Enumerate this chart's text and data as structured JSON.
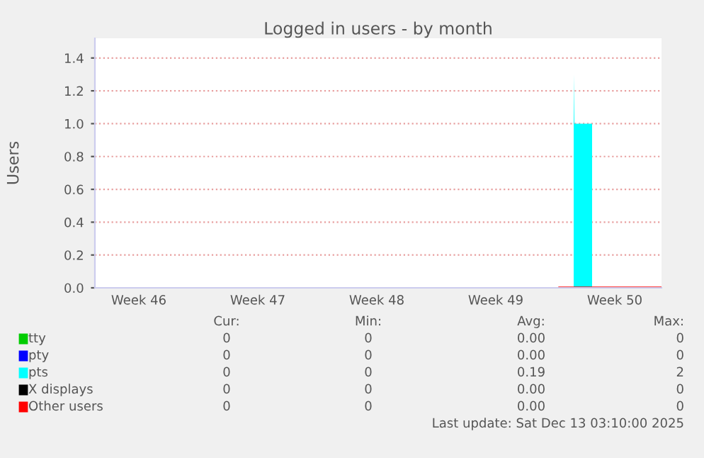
{
  "chart_data": {
    "type": "area",
    "title": "Logged in users - by month",
    "ylabel": "Users",
    "xlim": [
      "2025-11-10T22:00",
      "2025-12-14T06:00"
    ],
    "ylim": [
      0,
      1.52
    ],
    "xticks": [
      {
        "value": "2025-11-13T12:00",
        "label": "Week 46"
      },
      {
        "value": "2025-11-20T12:00",
        "label": "Week 47"
      },
      {
        "value": "2025-11-27T12:00",
        "label": "Week 48"
      },
      {
        "value": "2025-12-04T12:00",
        "label": "Week 49"
      },
      {
        "value": "2025-12-11T12:00",
        "label": "Week 50"
      }
    ],
    "yticks": [
      {
        "value": 0,
        "label": "0.0"
      },
      {
        "value": 0.2,
        "label": "0.2"
      },
      {
        "value": 0.4,
        "label": "0.4"
      },
      {
        "value": 0.6,
        "label": "0.6"
      },
      {
        "value": 0.8,
        "label": "0.8"
      },
      {
        "value": 1.0,
        "label": "1.0"
      },
      {
        "value": 1.2,
        "label": "1.2"
      },
      {
        "value": 1.4,
        "label": "1.4"
      }
    ],
    "grid": "y",
    "legend": "bottom",
    "series": [
      {
        "name": "tty",
        "color": "#00cc00",
        "type": "line"
      },
      {
        "name": "pty",
        "color": "#0000ff",
        "type": "line"
      },
      {
        "name": "pts",
        "color": "#00ffff",
        "x": [
          "2025-12-09T02:00",
          "2025-12-09T02:00",
          "2025-12-09T03:00",
          "2025-12-10T04:00",
          "2025-12-10T04:00"
        ],
        "values": [
          0,
          1.3,
          1.0,
          1.0,
          0
        ]
      },
      {
        "name": "X displays",
        "color": "#000000",
        "type": "line"
      },
      {
        "name": "Other users",
        "color": "#ff0000",
        "type": "line",
        "x": [
          "2025-12-08T06:00",
          "2025-12-14T06:00"
        ],
        "values": [
          0,
          0
        ]
      }
    ],
    "annotations": [
      "Cur:",
      "Min:",
      "Avg:",
      "Max:",
      "0",
      "0",
      "0.00",
      "0",
      "0",
      "0",
      "0.00",
      "0",
      "0",
      "0",
      "0.19",
      "2",
      "0",
      "0",
      "0.00",
      "0",
      "0",
      "0",
      "0.00",
      "0",
      "Last update: Sat Dec 13 03:10:00 2025"
    ]
  }
}
